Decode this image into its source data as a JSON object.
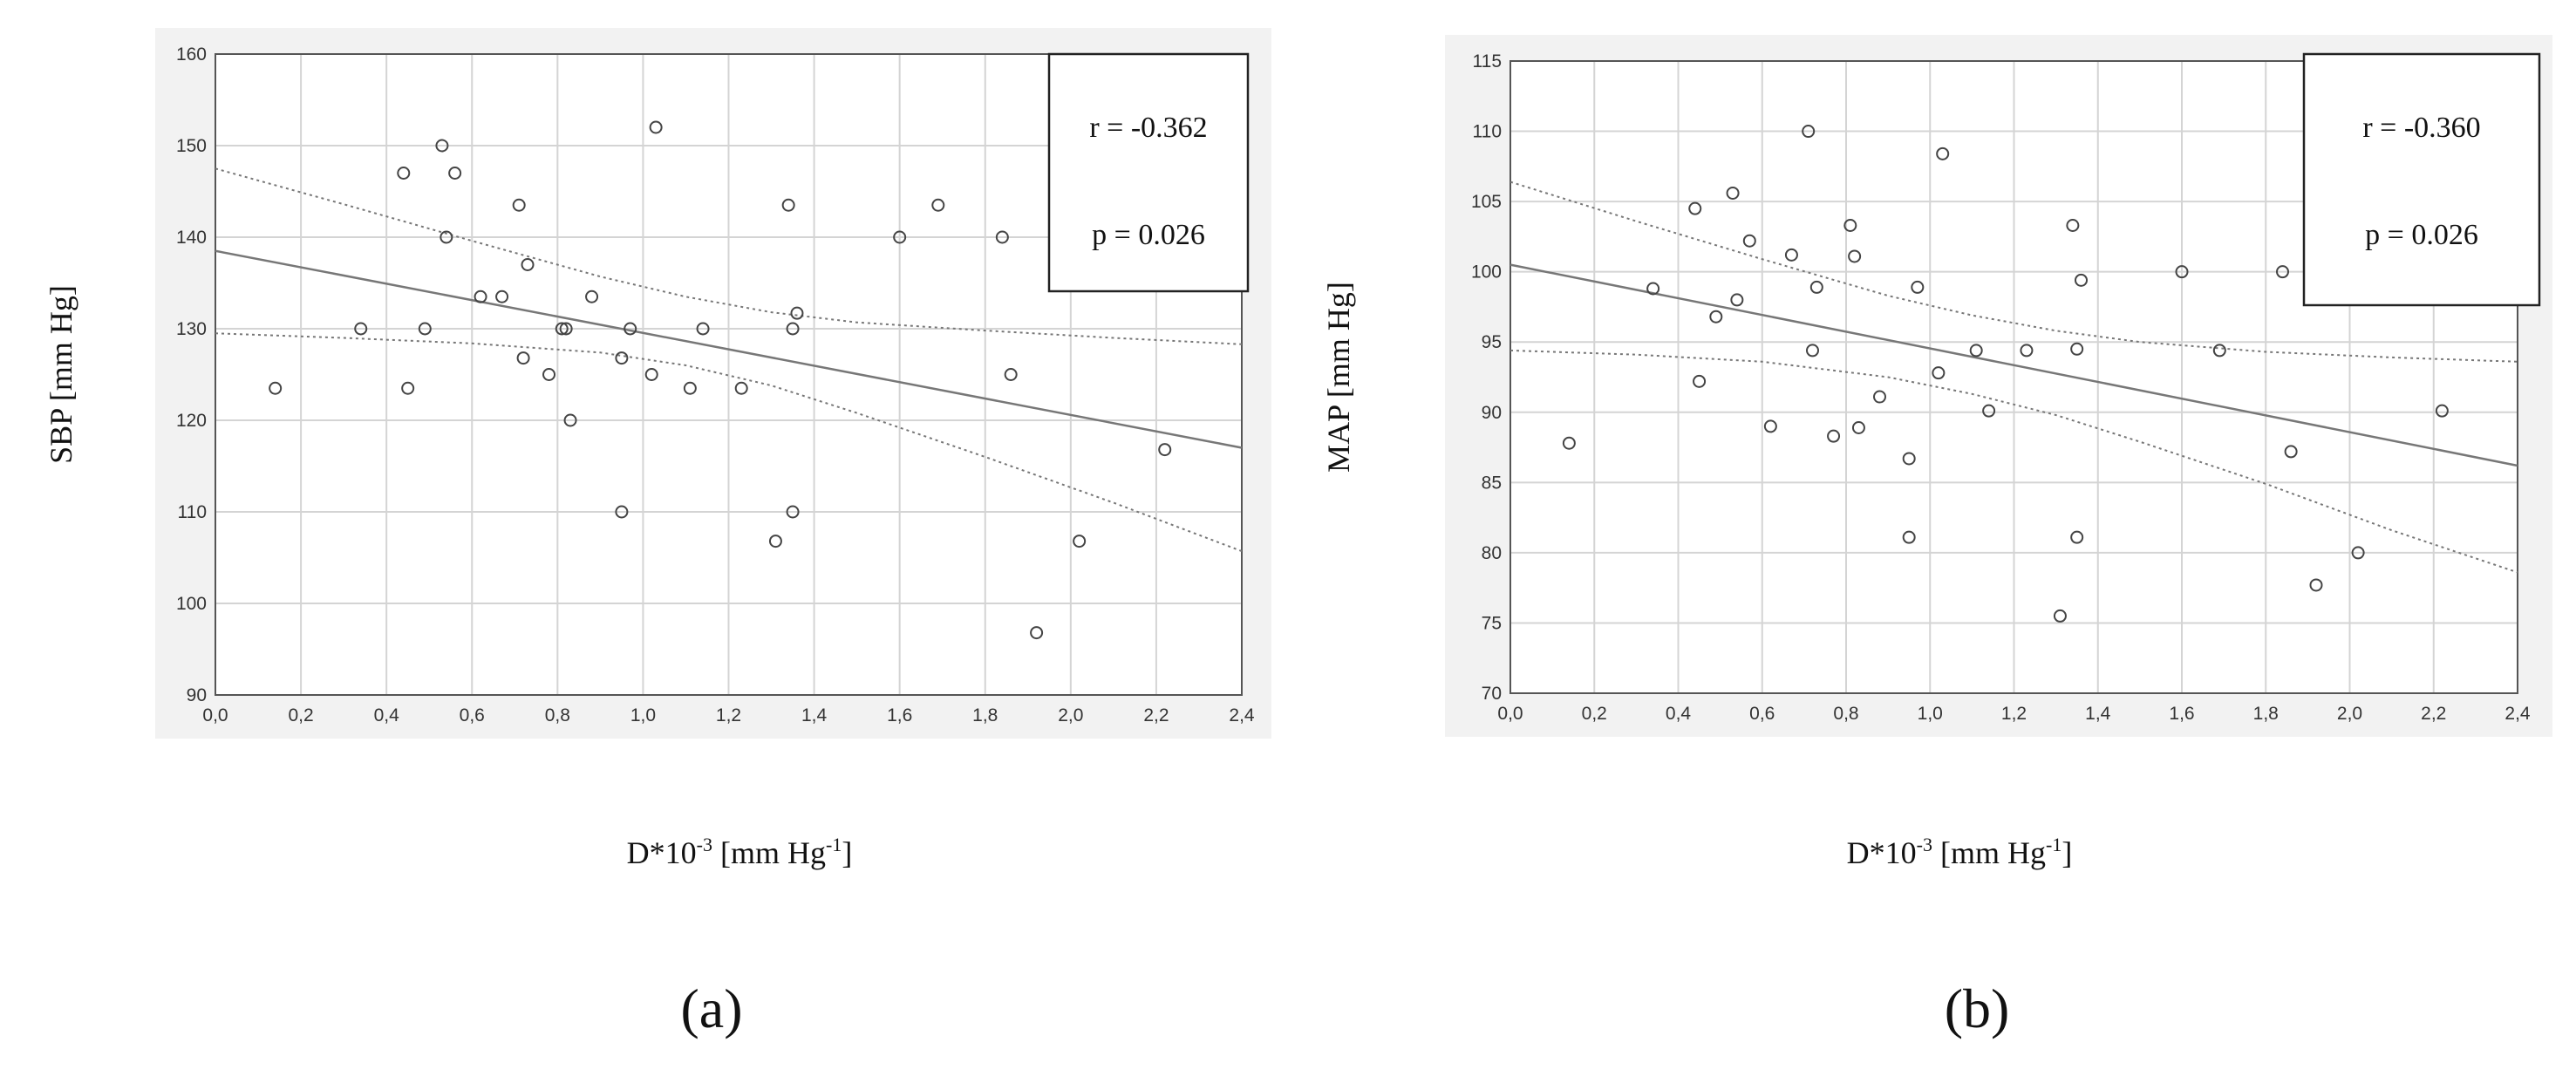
{
  "chart_data": [
    {
      "type": "scatter",
      "panel_label": "(a)",
      "xlabel": "D*10",
      "xlabel_sup1": "-3",
      "xlabel_mid": " [mm Hg",
      "xlabel_sup2": "-1",
      "xlabel_end": "]",
      "ylabel": "SBP [mm Hg]",
      "xlim": [
        0.0,
        2.4
      ],
      "ylim": [
        90,
        160
      ],
      "x_ticks": [
        "0,0",
        "0,2",
        "0,4",
        "0,6",
        "0,8",
        "1,0",
        "1,2",
        "1,4",
        "1,6",
        "1,8",
        "2,0",
        "2,2",
        "2,4"
      ],
      "y_ticks": [
        "90",
        "100",
        "110",
        "120",
        "130",
        "140",
        "150",
        "160"
      ],
      "stats": {
        "r": "r = -0.362",
        "p": "p = 0.026"
      },
      "regression": {
        "start": [
          0.0,
          138.5
        ],
        "end": [
          2.4,
          117.0
        ]
      },
      "ci_upper": [
        [
          0.0,
          147.5
        ],
        [
          0.3,
          143.6
        ],
        [
          0.6,
          139.6
        ],
        [
          0.9,
          135.7
        ],
        [
          1.1,
          133.5
        ],
        [
          1.3,
          131.8
        ],
        [
          1.5,
          130.7
        ],
        [
          1.8,
          129.8
        ],
        [
          2.1,
          129.0
        ],
        [
          2.4,
          128.3
        ]
      ],
      "ci_lower": [
        [
          0.0,
          129.5
        ],
        [
          0.3,
          129.0
        ],
        [
          0.6,
          128.4
        ],
        [
          0.9,
          127.4
        ],
        [
          1.1,
          126.0
        ],
        [
          1.3,
          123.8
        ],
        [
          1.5,
          120.8
        ],
        [
          1.8,
          116.0
        ],
        [
          2.1,
          111.0
        ],
        [
          2.4,
          105.7
        ]
      ],
      "points": [
        [
          0.14,
          123.5
        ],
        [
          0.34,
          130
        ],
        [
          0.44,
          147
        ],
        [
          0.45,
          123.5
        ],
        [
          0.49,
          130
        ],
        [
          0.53,
          150
        ],
        [
          0.54,
          140
        ],
        [
          0.56,
          147
        ],
        [
          0.62,
          133.5
        ],
        [
          0.67,
          133.5
        ],
        [
          0.71,
          143.5
        ],
        [
          0.72,
          126.8
        ],
        [
          0.73,
          137
        ],
        [
          0.78,
          125
        ],
        [
          0.81,
          130
        ],
        [
          0.82,
          130
        ],
        [
          0.83,
          120
        ],
        [
          0.88,
          133.5
        ],
        [
          0.95,
          126.8
        ],
        [
          0.95,
          110
        ],
        [
          0.97,
          130
        ],
        [
          1.02,
          125
        ],
        [
          1.03,
          152
        ],
        [
          1.11,
          123.5
        ],
        [
          1.14,
          130
        ],
        [
          1.23,
          123.5
        ],
        [
          1.31,
          106.8
        ],
        [
          1.34,
          143.5
        ],
        [
          1.35,
          130
        ],
        [
          1.35,
          110
        ],
        [
          1.36,
          131.7
        ],
        [
          1.6,
          140
        ],
        [
          1.69,
          143.5
        ],
        [
          1.84,
          140
        ],
        [
          1.86,
          125
        ],
        [
          1.92,
          96.8
        ],
        [
          2.02,
          106.8
        ],
        [
          2.22,
          116.8
        ]
      ]
    },
    {
      "type": "scatter",
      "panel_label": "(b)",
      "xlabel": "D*10",
      "xlabel_sup1": "-3",
      "xlabel_mid": " [mm Hg",
      "xlabel_sup2": "-1",
      "xlabel_end": "]",
      "ylabel": "MAP [mm Hg]",
      "xlim": [
        0.0,
        2.4
      ],
      "ylim": [
        70,
        115
      ],
      "x_ticks": [
        "0,0",
        "0,2",
        "0,4",
        "0,6",
        "0,8",
        "1,0",
        "1,2",
        "1,4",
        "1,6",
        "1,8",
        "2,0",
        "2,2",
        "2,4"
      ],
      "y_ticks": [
        "70",
        "75",
        "80",
        "85",
        "90",
        "95",
        "100",
        "105",
        "110",
        "115"
      ],
      "stats": {
        "r": "r = -0.360",
        "p": "p = 0.026"
      },
      "regression": {
        "start": [
          0.0,
          100.5
        ],
        "end": [
          2.4,
          86.2
        ]
      },
      "ci_upper": [
        [
          0.0,
          106.4
        ],
        [
          0.3,
          103.6
        ],
        [
          0.6,
          100.9
        ],
        [
          0.9,
          98.3
        ],
        [
          1.1,
          96.9
        ],
        [
          1.3,
          95.8
        ],
        [
          1.5,
          95.0
        ],
        [
          1.8,
          94.3
        ],
        [
          2.1,
          93.9
        ],
        [
          2.4,
          93.6
        ]
      ],
      "ci_lower": [
        [
          0.0,
          94.4
        ],
        [
          0.3,
          94.1
        ],
        [
          0.6,
          93.6
        ],
        [
          0.9,
          92.5
        ],
        [
          1.1,
          91.3
        ],
        [
          1.3,
          89.8
        ],
        [
          1.5,
          87.9
        ],
        [
          1.8,
          84.9
        ],
        [
          2.1,
          81.6
        ],
        [
          2.4,
          78.6
        ]
      ],
      "points": [
        [
          0.14,
          87.8
        ],
        [
          0.34,
          98.8
        ],
        [
          0.44,
          104.5
        ],
        [
          0.45,
          92.2
        ],
        [
          0.49,
          96.8
        ],
        [
          0.53,
          105.6
        ],
        [
          0.54,
          98
        ],
        [
          0.57,
          102.2
        ],
        [
          0.62,
          89
        ],
        [
          0.67,
          101.2
        ],
        [
          0.71,
          110
        ],
        [
          0.72,
          94.4
        ],
        [
          0.73,
          98.9
        ],
        [
          0.77,
          88.3
        ],
        [
          0.81,
          103.3
        ],
        [
          0.82,
          101.1
        ],
        [
          0.83,
          88.9
        ],
        [
          0.88,
          91.1
        ],
        [
          0.95,
          86.7
        ],
        [
          0.95,
          81.1
        ],
        [
          0.97,
          98.9
        ],
        [
          1.02,
          92.8
        ],
        [
          1.03,
          108.4
        ],
        [
          1.11,
          94.4
        ],
        [
          1.14,
          90.1
        ],
        [
          1.23,
          94.4
        ],
        [
          1.31,
          75.5
        ],
        [
          1.34,
          103.3
        ],
        [
          1.35,
          94.5
        ],
        [
          1.35,
          81.1
        ],
        [
          1.36,
          99.4
        ],
        [
          1.6,
          100
        ],
        [
          1.69,
          94.4
        ],
        [
          1.84,
          100
        ],
        [
          1.86,
          87.2
        ],
        [
          1.92,
          77.7
        ],
        [
          2.02,
          80
        ],
        [
          2.22,
          90.1
        ]
      ]
    }
  ]
}
